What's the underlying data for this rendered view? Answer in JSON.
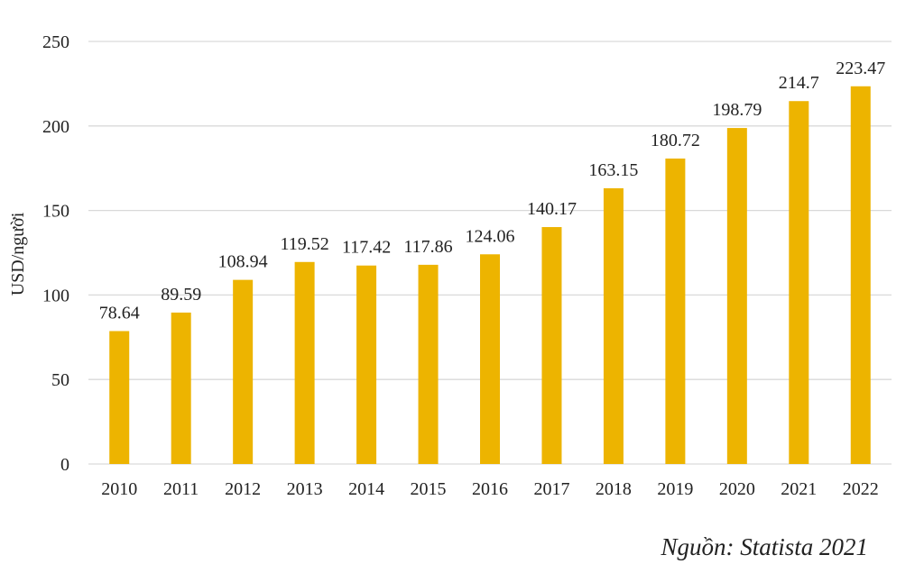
{
  "chart_data": {
    "type": "bar",
    "title": "",
    "xlabel": "",
    "ylabel": "USD/người",
    "categories": [
      "2010",
      "2011",
      "2012",
      "2013",
      "2014",
      "2015",
      "2016",
      "2017",
      "2018",
      "2019",
      "2020",
      "2021",
      "2022"
    ],
    "values": [
      78.64,
      89.59,
      108.94,
      119.52,
      117.42,
      117.86,
      124.06,
      140.17,
      163.15,
      180.72,
      198.79,
      214.7,
      223.47
    ],
    "value_labels": [
      "78.64",
      "89.59",
      "108.94",
      "119.52",
      "117.42",
      "117.86",
      "124.06",
      "140.17",
      "163.15",
      "180.72",
      "198.79",
      "214.7",
      "223.47"
    ],
    "ylim": [
      0,
      250
    ],
    "yticks": [
      0,
      50,
      100,
      150,
      200,
      250
    ],
    "grid": true,
    "bar_color": "#EDB400"
  },
  "source": "Nguồn: Statista 2021"
}
